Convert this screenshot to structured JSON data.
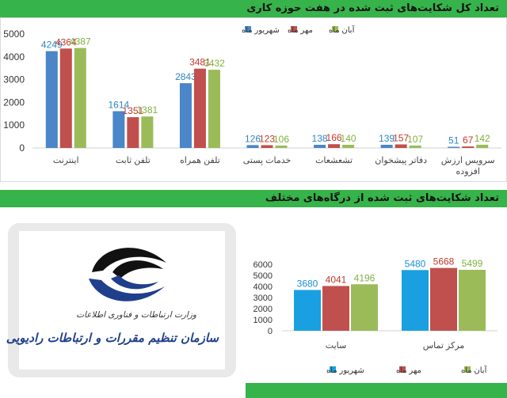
{
  "chart_data": [
    {
      "type": "bar",
      "title": "تعداد کل شکایت‌های ثبت شده در هفت حوزه کاری",
      "categories": [
        "اینترنت",
        "تلفن ثابت",
        "تلفن همراه",
        "خدمات پستی",
        "تشعشعات",
        "دفاتر پیشخوان",
        "سرویس ارزش افزوده"
      ],
      "series": [
        {
          "name": "شهریور ماه",
          "color": "#4a86c8",
          "label_color": "#2e86c1",
          "values": [
            4249,
            1614,
            2843,
            126,
            138,
            139,
            51
          ]
        },
        {
          "name": "مهر ماه",
          "color": "#c0504d",
          "label_color": "#c0392b",
          "values": [
            4364,
            1351,
            3481,
            123,
            166,
            157,
            67
          ]
        },
        {
          "name": "آبان ماه",
          "color": "#9bbb59",
          "label_color": "#7fb03c",
          "values": [
            4387,
            1381,
            3432,
            106,
            140,
            107,
            142
          ]
        }
      ],
      "yticks": [
        0,
        1000,
        2000,
        3000,
        4000,
        5000
      ],
      "ylim": [
        0,
        5000
      ],
      "legend": "top",
      "grid": false
    },
    {
      "type": "bar",
      "title": "تعداد شکایت‌های ثبت شده از درگاه‌های مختلف",
      "categories": [
        "سایت",
        "مرکز تماس"
      ],
      "series": [
        {
          "name": "شهریور ماه",
          "color": "#1aa0e0",
          "label_color": "#1a8fd0",
          "values": [
            3680,
            5480
          ]
        },
        {
          "name": "مهر ماه",
          "color": "#c0504d",
          "label_color": "#c0392b",
          "values": [
            4041,
            5668
          ]
        },
        {
          "name": "آبان ماه",
          "color": "#9bbb59",
          "label_color": "#7fb03c",
          "values": [
            4196,
            5499
          ]
        }
      ],
      "yticks": [
        0,
        1000,
        2000,
        3000,
        4000,
        5000,
        6000
      ],
      "ylim": [
        0,
        6000
      ],
      "legend": "bottom",
      "grid": false
    }
  ],
  "logo": {
    "line1": "وزارت ارتباطات و فناوری اطلاعات",
    "line2": "سازمان تنظیم مقررات و ارتباطات رادیویی",
    "colors": {
      "blue": "#1f3e8c",
      "black": "#111111"
    }
  },
  "colors": {
    "banner": "#36b34a"
  }
}
